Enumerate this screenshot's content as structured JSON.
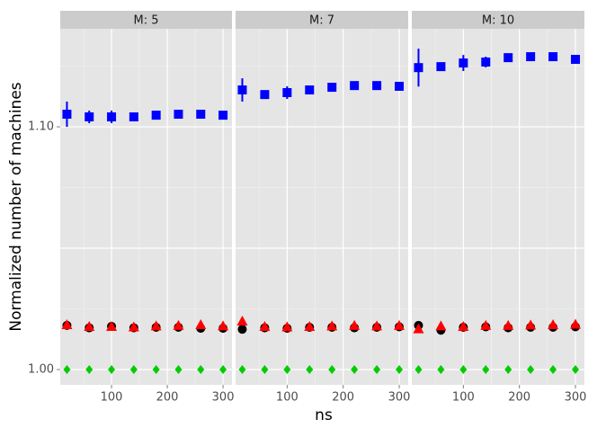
{
  "chart_data": [
    {
      "type": "scatter",
      "title": "M: 5",
      "ylabel": "Normalized number of machines",
      "x": [
        20,
        60,
        100,
        140,
        180,
        220,
        260,
        300
      ],
      "xlim": [
        8,
        316
      ],
      "ylim": [
        0.9937,
        1.1404
      ],
      "xticks": [
        100,
        200,
        300
      ],
      "yticks": [
        {
          "value": 1.0,
          "label": "1.00"
        },
        1.05,
        {
          "value": 1.1,
          "label": "1.10"
        }
      ],
      "grid": true,
      "series": [
        {
          "color": "#0000ff",
          "marker": "square",
          "values": [
            1.1052,
            1.1041,
            1.1041,
            1.1041,
            1.1048,
            1.1052,
            1.1052,
            1.1048
          ],
          "errors": [
            0.0052,
            0.0026,
            0.0026,
            0.0015,
            0.0005,
            0.0005,
            0.0005,
            0.0005
          ]
        },
        {
          "color": "#000000",
          "marker": "circle",
          "values": [
            1.0182,
            1.0172,
            1.0178,
            1.0172,
            1.0174,
            1.0174,
            1.017,
            1.017
          ]
        },
        {
          "color": "#ff0000",
          "marker": "triangle",
          "values": [
            1.0185,
            1.0178,
            1.0178,
            1.0176,
            1.018,
            1.0182,
            1.0185,
            1.018
          ]
        },
        {
          "color": "#00cc00",
          "marker": "diamond",
          "values": [
            1.0,
            1.0,
            1.0,
            1.0,
            1.0,
            1.0,
            1.0,
            1.0
          ]
        }
      ]
    },
    {
      "type": "scatter",
      "title": "M: 7",
      "xlabel": "ns",
      "x": [
        20,
        60,
        100,
        140,
        180,
        220,
        260,
        300
      ],
      "xlim": [
        8,
        316
      ],
      "ylim": [
        0.9937,
        1.1404
      ],
      "xticks": [
        100,
        200,
        300
      ],
      "yticks": [
        1.0,
        1.05,
        1.1
      ],
      "grid": true,
      "series": [
        {
          "color": "#0000ff",
          "marker": "square",
          "values": [
            1.1152,
            1.1133,
            1.1141,
            1.1152,
            1.1163,
            1.117,
            1.117,
            1.1167
          ],
          "errors": [
            0.0048,
            0.0015,
            0.0026,
            0.0018,
            0.001,
            0.001,
            0.001,
            0.001
          ]
        },
        {
          "color": "#000000",
          "marker": "circle",
          "values": [
            1.0166,
            1.0172,
            1.017,
            1.0174,
            1.0174,
            1.0172,
            1.0174,
            1.0176
          ]
        },
        {
          "color": "#ff0000",
          "marker": "triangle",
          "values": [
            1.02,
            1.0178,
            1.0176,
            1.0178,
            1.018,
            1.0182,
            1.018,
            1.0182
          ]
        },
        {
          "color": "#00cc00",
          "marker": "diamond",
          "values": [
            1.0,
            1.0,
            1.0,
            1.0,
            1.0,
            1.0,
            1.0,
            1.0
          ]
        }
      ]
    },
    {
      "type": "scatter",
      "title": "M: 10",
      "x": [
        20,
        60,
        100,
        140,
        180,
        220,
        260,
        300
      ],
      "xlim": [
        8,
        316
      ],
      "ylim": [
        0.9937,
        1.1404
      ],
      "xticks": [
        100,
        200,
        300
      ],
      "yticks": [
        1.0,
        1.05,
        1.1
      ],
      "grid": true,
      "series": [
        {
          "color": "#0000ff",
          "marker": "square",
          "values": [
            1.1244,
            1.1248,
            1.1263,
            1.1267,
            1.1285,
            1.1289,
            1.1289,
            1.1278
          ],
          "errors": [
            0.0078,
            0.001,
            0.0033,
            0.0022,
            0.001,
            0.001,
            0.001,
            0.001
          ]
        },
        {
          "color": "#000000",
          "marker": "circle",
          "values": [
            1.0182,
            1.0162,
            1.0174,
            1.0176,
            1.0172,
            1.0174,
            1.0174,
            1.0176
          ]
        },
        {
          "color": "#ff0000",
          "marker": "triangle",
          "values": [
            1.0168,
            1.018,
            1.0178,
            1.0182,
            1.0182,
            1.0184,
            1.0185,
            1.0187
          ]
        },
        {
          "color": "#00cc00",
          "marker": "diamond",
          "values": [
            1.0,
            1.0,
            1.0,
            1.0,
            1.0,
            1.0,
            1.0,
            1.0
          ]
        }
      ]
    }
  ]
}
